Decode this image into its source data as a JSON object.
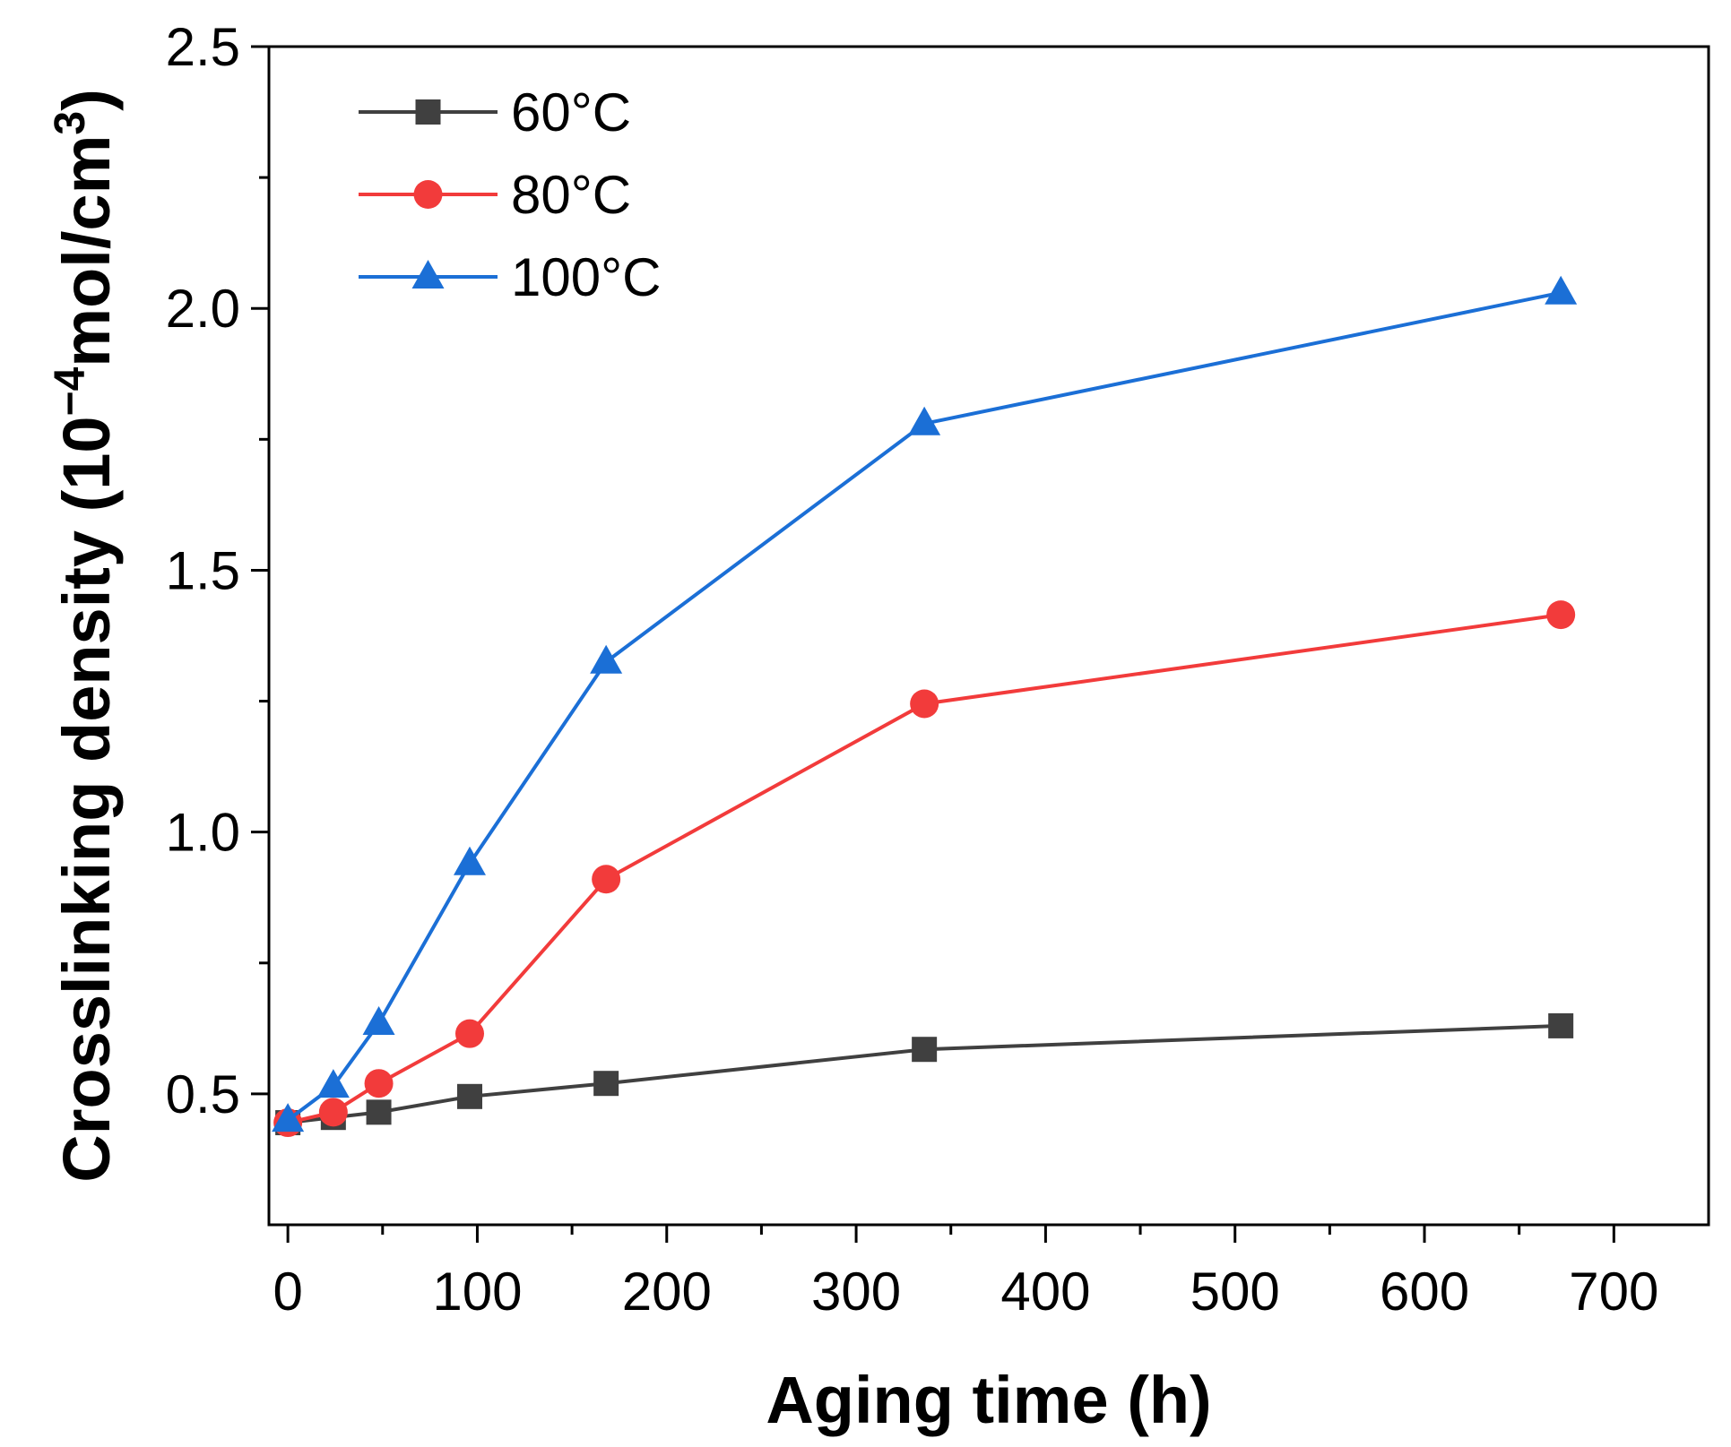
{
  "chart_data": {
    "type": "line",
    "title": "",
    "xlabel": "Aging time (h)",
    "ylabel_prefix": "Crosslinking density (10",
    "ylabel_exp": "−4",
    "ylabel_mid": "mol/cm",
    "ylabel_unit_exp": "3",
    "ylabel_suffix": ")",
    "xlim": [
      -10,
      750
    ],
    "ylim": [
      0.25,
      2.5
    ],
    "xticks": [
      0,
      100,
      200,
      300,
      400,
      500,
      600,
      700
    ],
    "xtick_labels": [
      "0",
      "100",
      "200",
      "300",
      "400",
      "500",
      "600",
      "700"
    ],
    "yticks": [
      0.5,
      1.0,
      1.5,
      2.0,
      2.5
    ],
    "ytick_labels": [
      "0.5",
      "1.0",
      "1.5",
      "2.0",
      "2.5"
    ],
    "legend_position": "top-left",
    "x": [
      0,
      24,
      48,
      96,
      168,
      336,
      672
    ],
    "series": [
      {
        "name": "60°C",
        "color": "#404040",
        "marker": "square",
        "values": [
          0.445,
          0.455,
          0.465,
          0.495,
          0.52,
          0.585,
          0.63
        ]
      },
      {
        "name": "80°C",
        "color": "#f23b3b",
        "marker": "circle",
        "values": [
          0.445,
          0.465,
          0.52,
          0.615,
          0.91,
          1.245,
          1.415
        ]
      },
      {
        "name": "100°C",
        "color": "#1b6fd6",
        "marker": "triangle",
        "values": [
          0.45,
          0.515,
          0.635,
          0.94,
          1.325,
          1.78,
          2.03
        ]
      }
    ]
  }
}
